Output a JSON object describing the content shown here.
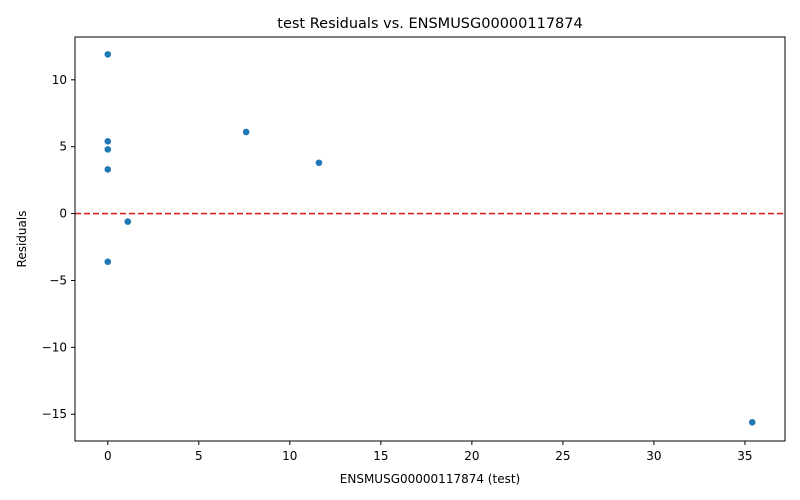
{
  "chart_data": {
    "type": "scatter",
    "title": "test Residuals vs. ENSMUSG00000117874",
    "xlabel": "ENSMUSG00000117874 (test)",
    "ylabel": "Residuals",
    "xlim": [
      -1.8,
      37.2
    ],
    "ylim": [
      -17.0,
      13.2
    ],
    "xticks": [
      0,
      5,
      10,
      15,
      20,
      25,
      30,
      35
    ],
    "yticks": [
      -15,
      -10,
      -5,
      0,
      5,
      10
    ],
    "grid": false,
    "reference_line": {
      "y": 0,
      "color": "#d62728",
      "style": "dashed"
    },
    "marker_color": "#1f77b4",
    "points": [
      {
        "x": 0.0,
        "y": 11.9
      },
      {
        "x": 0.0,
        "y": 5.4
      },
      {
        "x": 0.0,
        "y": 4.8
      },
      {
        "x": 0.0,
        "y": 3.3
      },
      {
        "x": 0.0,
        "y": -3.6
      },
      {
        "x": 1.1,
        "y": -0.6
      },
      {
        "x": 7.6,
        "y": 6.1
      },
      {
        "x": 11.6,
        "y": 3.8
      },
      {
        "x": 35.4,
        "y": -15.6
      }
    ]
  }
}
